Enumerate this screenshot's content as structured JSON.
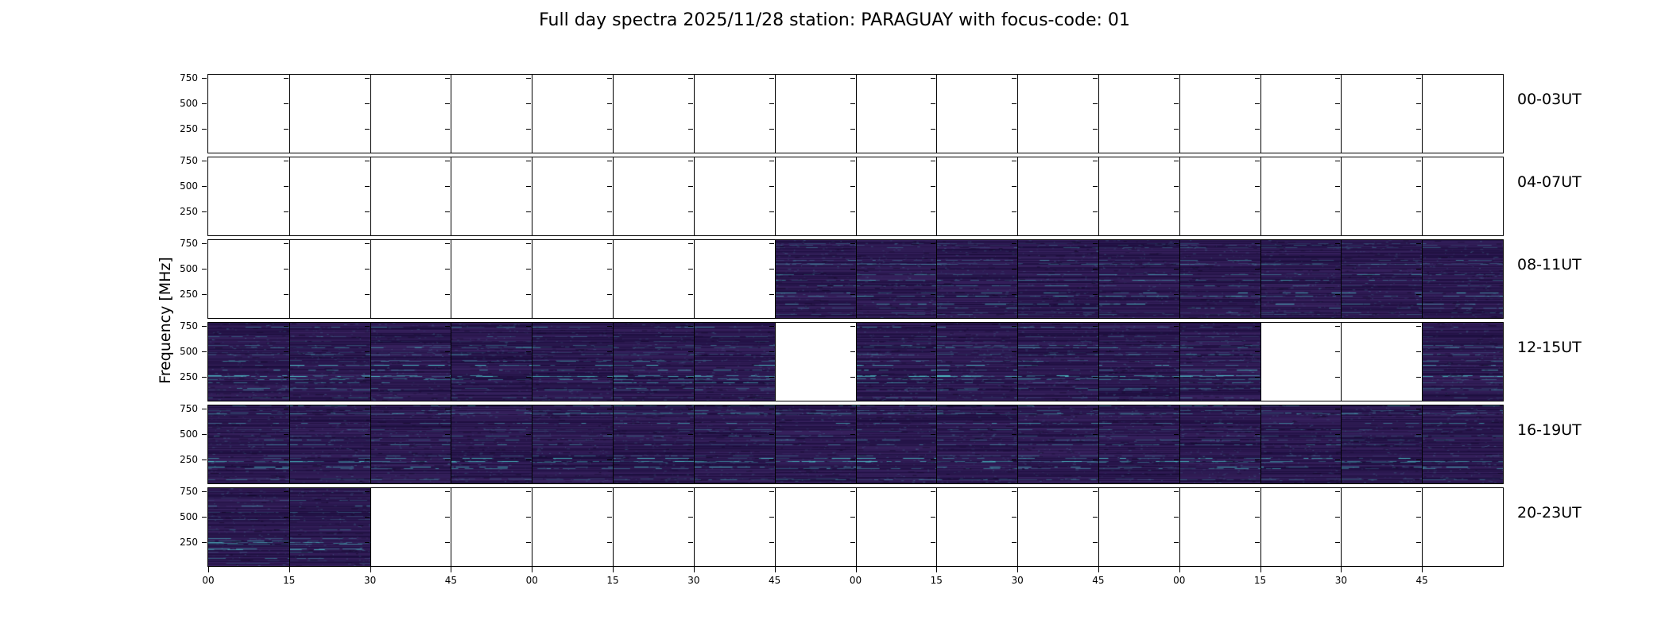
{
  "title": "Full day spectra 2025/11/28 station: PARAGUAY with focus-code: 01",
  "chart_data": {
    "type": "heatmap",
    "title": "Full day spectra 2025/11/28 station: PARAGUAY with focus-code: 01",
    "ylabel": "Frequency [MHz]",
    "y_tick_labels": [
      "750",
      "500",
      "250"
    ],
    "x_tick_labels": [
      "00",
      "15",
      "30",
      "45",
      "00",
      "15",
      "30",
      "45",
      "00",
      "15",
      "30",
      "45",
      "00",
      "15",
      "30",
      "45"
    ],
    "rows": [
      {
        "label": "00-03UT",
        "filled_cells": []
      },
      {
        "label": "04-07UT",
        "filled_cells": []
      },
      {
        "label": "08-11UT",
        "filled_cells": [
          7,
          8,
          9,
          10,
          11,
          12,
          13,
          14,
          15
        ]
      },
      {
        "label": "12-15UT",
        "filled_cells": [
          0,
          1,
          2,
          3,
          4,
          5,
          6,
          8,
          9,
          10,
          11,
          12,
          15
        ]
      },
      {
        "label": "16-19UT",
        "filled_cells": [
          0,
          1,
          2,
          3,
          4,
          5,
          6,
          7,
          8,
          9,
          10,
          11,
          12,
          13,
          14,
          15
        ]
      },
      {
        "label": "20-23UT",
        "filled_cells": [
          0,
          1
        ]
      }
    ],
    "colors": {
      "background": "#ffffff",
      "spectrogram_base": "#2a1a4b",
      "spectrogram_streak": "#50d7d7",
      "axis": "#000000"
    }
  }
}
